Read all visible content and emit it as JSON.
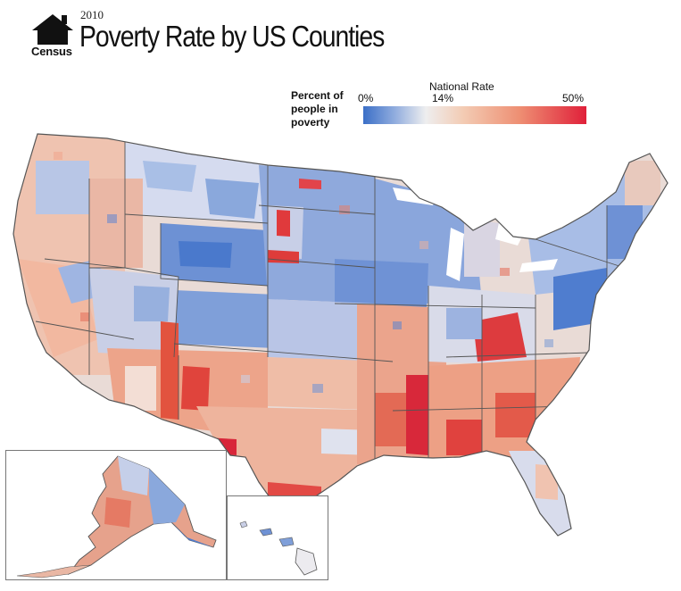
{
  "header": {
    "logo_text": "Census",
    "year": "2010",
    "title": "Poverty Rate by US Counties"
  },
  "legend": {
    "label": "Percent of people in poverty",
    "min_label": "0%",
    "national_label": "National Rate",
    "national_value": "14%",
    "max_label": "50%",
    "colors": [
      "#3b6fc7",
      "#90acde",
      "#eeeeef",
      "#f3cbb3",
      "#ee8f73",
      "#e0203a"
    ]
  },
  "map": {
    "insets": [
      "alaska-inset",
      "hawaii-inset"
    ],
    "palette": {
      "low": "#3b6fc7",
      "mid_low": "#8aa8dc",
      "national": "#ecebef",
      "mid_high": "#efb9a0",
      "high": "#e25a48",
      "very_high": "#d61e36",
      "border": "#555555"
    }
  }
}
